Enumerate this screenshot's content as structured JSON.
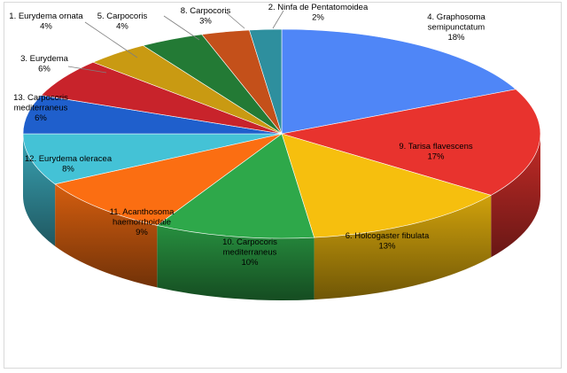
{
  "chart_data": {
    "type": "pie",
    "style": "3d-exploded-tilted",
    "title": "",
    "legend": "none",
    "slices": [
      {
        "name": "4. Graphosoma semipunctatum",
        "lines": [
          "4. Graphosoma",
          "semipunctatum"
        ],
        "percent_label": "18%",
        "value": 18,
        "color": "#4F86F7"
      },
      {
        "name": "9. Tarisa flavescens",
        "lines": [
          "9. Tarisa flavescens"
        ],
        "percent_label": "17%",
        "value": 17,
        "color": "#E8332E"
      },
      {
        "name": "6. Holcogaster fibulata",
        "lines": [
          "6. Holcogaster fibulata"
        ],
        "percent_label": "13%",
        "value": 13,
        "color": "#F6BF0E"
      },
      {
        "name": "10. Carpocoris mediterraneus",
        "lines": [
          "10. Carpocoris",
          "mediterraneus"
        ],
        "percent_label": "10%",
        "value": 10,
        "color": "#2EA84A"
      },
      {
        "name": "11. Acanthosoma haemorrhoidale",
        "lines": [
          "11. Acanthosoma",
          "haemorrhoidale"
        ],
        "percent_label": "9%",
        "value": 9,
        "color": "#FB6E12"
      },
      {
        "name": "12. Eurydema oleracea",
        "lines": [
          "12. Eurydema oleracea"
        ],
        "percent_label": "8%",
        "value": 8,
        "color": "#44C2D6"
      },
      {
        "name": "13. Carpocoris mediterraneus",
        "lines": [
          "13.  Carpocoris",
          "mediterraneus"
        ],
        "percent_label": "6%",
        "value": 6,
        "color": "#1F5FCC"
      },
      {
        "name": "3. Eurydema",
        "lines": [
          "3. Eurydema"
        ],
        "percent_label": "6%",
        "value": 6,
        "color": "#C8232B"
      },
      {
        "name": "1. Eurydema ornata",
        "lines": [
          "1. Eurydema ornata"
        ],
        "percent_label": "4%",
        "value": 4,
        "color": "#C99A12"
      },
      {
        "name": "5. Carpocoris",
        "lines": [
          "5. Carpocoris"
        ],
        "percent_label": "4%",
        "value": 4,
        "color": "#237A35"
      },
      {
        "name": "8. Carpocoris",
        "lines": [
          "8.  Carpocoris"
        ],
        "percent_label": "3%",
        "value": 3,
        "color": "#C4501A"
      },
      {
        "name": "2. Ninfa de Pentatomoidea",
        "lines": [
          "2. Ninfa de Pentatomoidea"
        ],
        "percent_label": "2%",
        "value": 2,
        "color": "#2E8F9E"
      }
    ]
  }
}
